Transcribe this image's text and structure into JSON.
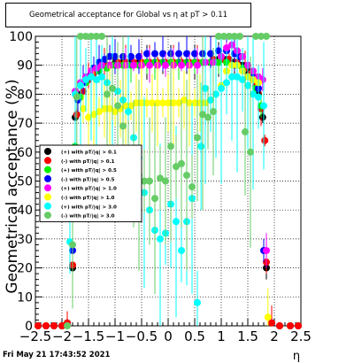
{
  "chart_data": {
    "type": "scatter",
    "title": "Geometrical acceptance for Global vs   η at pT > 0.11",
    "xlabel": "η",
    "ylabel": "Geometrical acceptance (%)",
    "xlim": [
      -2.5,
      2.5
    ],
    "ylim": [
      0,
      100
    ],
    "x_ticks": [
      -2.5,
      -2,
      -1.5,
      -1,
      -0.5,
      0,
      0.5,
      1,
      1.5,
      2,
      2.5
    ],
    "x_tick_labels": [
      "−2.5",
      "−2",
      "−1.5",
      "−1",
      "−0.5",
      "0",
      "0.5",
      "1",
      "1.5",
      "2",
      "2.5"
    ],
    "y_ticks": [
      0,
      10,
      20,
      30,
      40,
      50,
      60,
      70,
      80,
      90,
      100
    ],
    "y_tick_labels": [
      "0",
      "10",
      "20",
      "30",
      "40",
      "50",
      "60",
      "70",
      "80",
      "90",
      "100"
    ],
    "grid": true,
    "legend_position": "middle-left",
    "series": [
      {
        "name": "(+) with pT/|q| > 0.1",
        "color": "#000000",
        "marker": "circle",
        "points": [
          [
            -2.45,
            0
          ],
          [
            -2.3,
            0
          ],
          [
            -2.15,
            0
          ],
          [
            -2.0,
            0
          ],
          [
            -1.9,
            1
          ],
          [
            -1.8,
            20
          ],
          [
            -1.75,
            72
          ],
          [
            -1.65,
            80
          ],
          [
            -1.55,
            85
          ],
          [
            -1.45,
            87
          ],
          [
            -1.35,
            89
          ],
          [
            -1.25,
            90
          ],
          [
            -1.15,
            90
          ],
          [
            -1.0,
            91
          ],
          [
            -0.85,
            91
          ],
          [
            -0.7,
            91
          ],
          [
            -0.55,
            91
          ],
          [
            -0.4,
            91
          ],
          [
            -0.25,
            91
          ],
          [
            -0.1,
            91
          ],
          [
            0.05,
            91
          ],
          [
            0.2,
            91
          ],
          [
            0.35,
            91
          ],
          [
            0.5,
            91
          ],
          [
            0.65,
            91
          ],
          [
            0.8,
            91
          ],
          [
            0.95,
            92
          ],
          [
            1.1,
            92
          ],
          [
            1.25,
            91
          ],
          [
            1.4,
            90
          ],
          [
            1.5,
            88
          ],
          [
            1.6,
            85
          ],
          [
            1.7,
            80
          ],
          [
            1.78,
            72
          ],
          [
            1.85,
            20
          ],
          [
            1.95,
            1
          ],
          [
            2.1,
            0
          ],
          [
            2.3,
            0
          ],
          [
            2.45,
            0
          ]
        ]
      },
      {
        "name": "(-) with pT/|q| > 0.1",
        "color": "#ff0000",
        "marker": "circle",
        "points": [
          [
            -2.45,
            0
          ],
          [
            -2.3,
            0
          ],
          [
            -2.15,
            0
          ],
          [
            -2.0,
            0
          ],
          [
            -1.9,
            1
          ],
          [
            -1.8,
            21
          ],
          [
            -1.72,
            73
          ],
          [
            -1.6,
            81
          ],
          [
            -1.5,
            85
          ],
          [
            -1.4,
            87
          ],
          [
            -1.3,
            89
          ],
          [
            -1.2,
            90
          ],
          [
            -1.1,
            90
          ],
          [
            -0.95,
            91
          ],
          [
            -0.8,
            91
          ],
          [
            -0.65,
            91
          ],
          [
            -0.5,
            91
          ],
          [
            -0.35,
            91
          ],
          [
            -0.2,
            91
          ],
          [
            -0.05,
            91
          ],
          [
            0.1,
            91
          ],
          [
            0.25,
            91
          ],
          [
            0.4,
            91
          ],
          [
            0.55,
            91
          ],
          [
            0.7,
            91
          ],
          [
            0.85,
            92
          ],
          [
            1.0,
            92
          ],
          [
            1.15,
            92
          ],
          [
            1.3,
            91
          ],
          [
            1.45,
            89
          ],
          [
            1.55,
            87
          ],
          [
            1.65,
            83
          ],
          [
            1.75,
            75
          ],
          [
            1.82,
            64
          ],
          [
            1.85,
            22
          ],
          [
            1.95,
            1
          ],
          [
            2.1,
            0
          ],
          [
            2.3,
            0
          ],
          [
            2.45,
            0
          ]
        ]
      },
      {
        "name": "(+) with pT/|q| > 0.5",
        "color": "#00ee00",
        "marker": "circle",
        "points": [
          [
            -1.75,
            62
          ],
          [
            -1.65,
            79
          ],
          [
            -1.55,
            84
          ],
          [
            -1.45,
            86
          ],
          [
            -1.3,
            88
          ],
          [
            -1.15,
            89
          ],
          [
            -1.0,
            90
          ],
          [
            -0.85,
            90
          ],
          [
            -0.7,
            90
          ],
          [
            -0.55,
            90
          ],
          [
            -0.4,
            91
          ],
          [
            -0.25,
            91
          ],
          [
            -0.1,
            91
          ],
          [
            0.05,
            91
          ],
          [
            0.2,
            91
          ],
          [
            0.35,
            91
          ],
          [
            0.5,
            91
          ],
          [
            0.65,
            91
          ],
          [
            0.8,
            91
          ],
          [
            0.95,
            91
          ],
          [
            1.1,
            91
          ],
          [
            1.25,
            90
          ],
          [
            1.4,
            89
          ],
          [
            1.55,
            86
          ],
          [
            1.65,
            82
          ],
          [
            1.75,
            76
          ]
        ]
      },
      {
        "name": "(-) with pT/|q| > 0.5",
        "color": "#0000ff",
        "marker": "circle",
        "points": [
          [
            -1.8,
            26
          ],
          [
            -1.7,
            78
          ],
          [
            -1.6,
            84
          ],
          [
            -1.5,
            86
          ],
          [
            -1.4,
            89
          ],
          [
            -1.3,
            91
          ],
          [
            -1.2,
            92
          ],
          [
            -1.1,
            93
          ],
          [
            -1.0,
            93
          ],
          [
            -0.85,
            93
          ],
          [
            -0.7,
            93
          ],
          [
            -0.55,
            93
          ],
          [
            -0.4,
            94
          ],
          [
            -0.25,
            94
          ],
          [
            -0.1,
            94
          ],
          [
            0.05,
            94
          ],
          [
            0.2,
            94
          ],
          [
            0.35,
            94
          ],
          [
            0.5,
            94
          ],
          [
            0.65,
            94
          ],
          [
            0.8,
            94
          ],
          [
            0.95,
            95
          ],
          [
            1.1,
            95
          ],
          [
            1.25,
            94
          ],
          [
            1.35,
            93
          ],
          [
            1.5,
            90
          ],
          [
            1.6,
            86
          ],
          [
            1.7,
            82
          ],
          [
            1.8,
            26
          ]
        ]
      },
      {
        "name": "(+) with pT/|q| > 1.0",
        "color": "#ff00ff",
        "marker": "circle",
        "points": [
          [
            -1.75,
            81
          ],
          [
            -1.65,
            84
          ],
          [
            -1.55,
            86
          ],
          [
            -1.45,
            88
          ],
          [
            -1.35,
            89
          ],
          [
            -1.25,
            90
          ],
          [
            -1.1,
            90
          ],
          [
            -0.95,
            90
          ],
          [
            -0.8,
            90
          ],
          [
            -0.65,
            90
          ],
          [
            -0.5,
            90
          ],
          [
            -0.35,
            90
          ],
          [
            -0.2,
            90
          ],
          [
            -0.05,
            90
          ],
          [
            0.1,
            90
          ],
          [
            0.25,
            90
          ],
          [
            0.4,
            90
          ],
          [
            0.55,
            90
          ],
          [
            0.7,
            91
          ],
          [
            0.85,
            91
          ],
          [
            1.0,
            93
          ],
          [
            1.1,
            96
          ],
          [
            1.2,
            97
          ],
          [
            1.3,
            95
          ],
          [
            1.4,
            93
          ],
          [
            1.5,
            90
          ],
          [
            1.6,
            88
          ],
          [
            1.7,
            86
          ],
          [
            1.78,
            85
          ],
          [
            1.85,
            26
          ]
        ]
      },
      {
        "name": "(-) with pT/|q| > 1.0",
        "color": "#ffff00",
        "marker": "circle",
        "points": [
          [
            -1.6,
            75
          ],
          [
            -1.5,
            72
          ],
          [
            -1.4,
            73
          ],
          [
            -1.3,
            74
          ],
          [
            -1.2,
            75
          ],
          [
            -1.1,
            75
          ],
          [
            -1.0,
            74
          ],
          [
            -0.9,
            75
          ],
          [
            -0.8,
            76
          ],
          [
            -0.7,
            76
          ],
          [
            -0.6,
            77
          ],
          [
            -0.5,
            77
          ],
          [
            -0.4,
            77
          ],
          [
            -0.3,
            77
          ],
          [
            -0.2,
            77
          ],
          [
            -0.1,
            77
          ],
          [
            0.0,
            77
          ],
          [
            0.1,
            77
          ],
          [
            0.2,
            77
          ],
          [
            0.3,
            78
          ],
          [
            0.4,
            77
          ],
          [
            0.5,
            77
          ],
          [
            0.6,
            77
          ],
          [
            0.7,
            77
          ],
          [
            0.8,
            78
          ],
          [
            0.9,
            80
          ],
          [
            1.0,
            83
          ],
          [
            1.1,
            88
          ],
          [
            1.2,
            90
          ],
          [
            1.3,
            90
          ],
          [
            1.4,
            88
          ],
          [
            1.5,
            86
          ],
          [
            1.6,
            85
          ],
          [
            1.7,
            84
          ],
          [
            1.88,
            3
          ]
        ]
      },
      {
        "name": "(+) with pT/|q| > 3.0",
        "color": "#00ffff",
        "marker": "circle",
        "points": [
          [
            -1.85,
            29
          ],
          [
            -1.75,
            80
          ],
          [
            -1.65,
            83
          ],
          [
            -1.55,
            85
          ],
          [
            -1.45,
            86
          ],
          [
            -1.35,
            85
          ],
          [
            -1.25,
            86
          ],
          [
            -1.15,
            84
          ],
          [
            -1.05,
            82
          ],
          [
            -0.95,
            81
          ],
          [
            -0.85,
            78
          ],
          [
            -0.75,
            74
          ],
          [
            -0.65,
            65
          ],
          [
            -0.55,
            58
          ],
          [
            -0.45,
            46
          ],
          [
            -0.35,
            40
          ],
          [
            -0.25,
            33
          ],
          [
            -0.15,
            30
          ],
          [
            -0.05,
            32
          ],
          [
            0.05,
            42
          ],
          [
            0.15,
            36
          ],
          [
            0.25,
            26
          ],
          [
            0.35,
            36
          ],
          [
            0.45,
            44
          ],
          [
            0.55,
            8
          ],
          [
            0.62,
            62
          ],
          [
            0.7,
            82
          ],
          [
            0.8,
            78
          ],
          [
            0.9,
            80
          ],
          [
            1.0,
            82
          ],
          [
            1.1,
            84
          ],
          [
            1.2,
            86
          ],
          [
            1.3,
            86
          ],
          [
            1.4,
            85
          ],
          [
            1.5,
            83
          ],
          [
            1.6,
            80
          ],
          [
            1.7,
            79
          ],
          [
            1.8,
            76
          ]
        ]
      },
      {
        "name": "(-) with pT/|q| > 3.0",
        "color": "#66cc66",
        "marker": "circle",
        "points": [
          [
            -1.9,
            0
          ],
          [
            -1.8,
            28
          ],
          [
            -1.72,
            79
          ],
          [
            -1.65,
            100
          ],
          [
            -1.55,
            100
          ],
          [
            -1.45,
            100
          ],
          [
            -1.35,
            100
          ],
          [
            -1.25,
            100
          ],
          [
            -1.15,
            80
          ],
          [
            -1.05,
            82
          ],
          [
            -0.95,
            76
          ],
          [
            -0.85,
            69
          ],
          [
            -0.75,
            60
          ],
          [
            -0.65,
            56
          ],
          [
            -0.55,
            52
          ],
          [
            -0.45,
            50
          ],
          [
            -0.35,
            50
          ],
          [
            -0.25,
            44
          ],
          [
            -0.15,
            51
          ],
          [
            -0.05,
            50
          ],
          [
            0.05,
            62
          ],
          [
            0.15,
            55
          ],
          [
            0.25,
            56
          ],
          [
            0.35,
            52
          ],
          [
            0.45,
            48
          ],
          [
            0.55,
            65
          ],
          [
            0.65,
            73
          ],
          [
            0.75,
            72
          ],
          [
            0.85,
            74
          ],
          [
            0.95,
            100
          ],
          [
            1.05,
            100
          ],
          [
            1.15,
            100
          ],
          [
            1.25,
            100
          ],
          [
            1.35,
            100
          ],
          [
            1.45,
            67
          ],
          [
            1.55,
            60
          ],
          [
            1.65,
            100
          ],
          [
            1.75,
            100
          ],
          [
            1.85,
            100
          ]
        ]
      }
    ]
  },
  "footer": {
    "date": "Fri May 21 17:43:52 2021"
  }
}
